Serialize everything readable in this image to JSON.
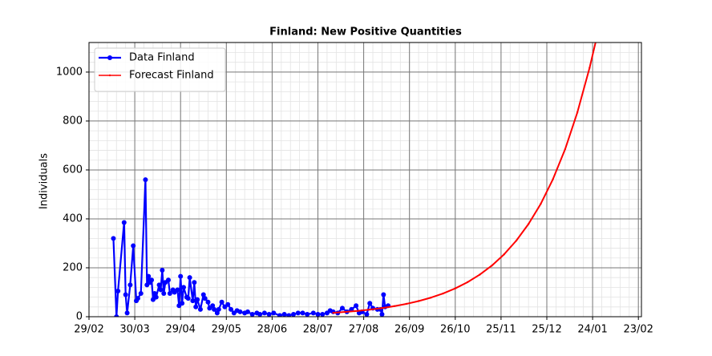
{
  "chart_data": {
    "type": "line",
    "title": "Finland: New Positive Quantities",
    "y_label": "Individuals",
    "xlim": [
      0,
      362
    ],
    "ylim": [
      0,
      1121
    ],
    "xticks": [
      {
        "value": 0,
        "label": "29/02"
      },
      {
        "value": 30,
        "label": "30/03"
      },
      {
        "value": 60,
        "label": "29/04"
      },
      {
        "value": 90,
        "label": "29/05"
      },
      {
        "value": 120,
        "label": "28/06"
      },
      {
        "value": 150,
        "label": "28/07"
      },
      {
        "value": 180,
        "label": "27/08"
      },
      {
        "value": 210,
        "label": "26/09"
      },
      {
        "value": 240,
        "label": "26/10"
      },
      {
        "value": 270,
        "label": "25/11"
      },
      {
        "value": 300,
        "label": "25/12"
      },
      {
        "value": 330,
        "label": "24/01"
      },
      {
        "value": 360,
        "label": "23/02"
      }
    ],
    "yticks": [
      0,
      200,
      400,
      600,
      800,
      1000
    ],
    "grid": true,
    "minor_grid": true,
    "legend": "upper left",
    "series": [
      {
        "name": "Data Finland",
        "color": "#0000ff",
        "marker": true,
        "x": [
          16,
          18,
          19,
          23,
          24,
          25,
          27,
          29,
          31,
          32,
          34,
          37,
          38,
          39,
          40,
          41,
          42,
          43,
          44,
          46,
          47,
          48,
          49,
          50,
          52,
          53,
          55,
          56,
          58,
          59,
          60,
          61,
          62,
          64,
          65,
          66,
          68,
          69,
          70,
          71,
          73,
          75,
          76,
          78,
          79,
          81,
          82,
          84,
          85,
          87,
          89,
          91,
          93,
          95,
          97,
          99,
          102,
          104,
          107,
          110,
          112,
          115,
          118,
          121,
          125,
          128,
          131,
          134,
          137,
          140,
          143,
          147,
          150,
          153,
          156,
          158,
          160,
          163,
          166,
          169,
          172,
          175,
          177,
          179,
          182,
          184,
          186,
          189,
          191,
          192,
          193,
          194,
          196
        ],
        "values": [
          320,
          0,
          105,
          385,
          90,
          15,
          130,
          290,
          65,
          75,
          95,
          560,
          130,
          165,
          140,
          150,
          70,
          95,
          80,
          130,
          110,
          190,
          95,
          140,
          150,
          95,
          110,
          100,
          110,
          45,
          165,
          55,
          120,
          80,
          75,
          160,
          65,
          140,
          40,
          70,
          30,
          90,
          75,
          60,
          35,
          45,
          30,
          15,
          30,
          60,
          40,
          50,
          30,
          15,
          25,
          20,
          15,
          20,
          10,
          15,
          10,
          15,
          10,
          15,
          5,
          10,
          5,
          10,
          15,
          15,
          10,
          15,
          10,
          10,
          15,
          25,
          20,
          15,
          35,
          20,
          30,
          45,
          15,
          20,
          10,
          55,
          35,
          30,
          30,
          10,
          90,
          40,
          45
        ]
      },
      {
        "name": "Forecast Finland",
        "color": "#ff0000",
        "marker": false,
        "x": [
          160,
          168,
          176,
          184,
          192,
          200,
          208,
          216,
          224,
          232,
          240,
          248,
          256,
          264,
          272,
          280,
          288,
          296,
          304,
          312,
          320,
          328,
          332
        ],
        "values": [
          16.0,
          19.6,
          23.8,
          29.0,
          35.4,
          43.1,
          52.5,
          64.0,
          77.9,
          95.0,
          115.7,
          141,
          171.8,
          209,
          255,
          311,
          379,
          461,
          562,
          685,
          835,
          1017,
          1123
        ]
      }
    ]
  }
}
